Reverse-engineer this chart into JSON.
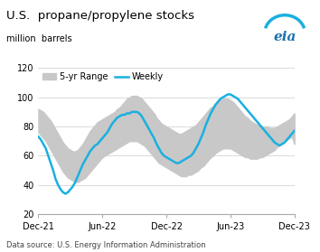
{
  "title": "U.S.  propane/propylene stocks",
  "ylabel": "million  barrels",
  "source": "Data source: U.S. Energy Information Administration",
  "xlabels": [
    "Dec-21",
    "Jun-22",
    "Dec-22",
    "Jun-23",
    "Dec-23"
  ],
  "xticks": [
    0,
    26,
    52,
    78,
    104
  ],
  "ylim": [
    20,
    120
  ],
  "yticks": [
    20,
    40,
    60,
    80,
    100,
    120
  ],
  "legend_range": "5-yr Range",
  "legend_weekly": "Weekly",
  "band_color": "#c8c8c8",
  "weekly_color": "#1ab0e0",
  "weekly_linewidth": 1.8,
  "n_points": 105,
  "weekly": [
    73,
    71,
    68,
    65,
    60,
    55,
    50,
    44,
    40,
    37,
    35,
    34,
    35,
    37,
    39,
    42,
    46,
    50,
    54,
    57,
    60,
    63,
    65,
    67,
    68,
    70,
    72,
    74,
    76,
    79,
    82,
    84,
    86,
    87,
    88,
    88,
    89,
    89,
    90,
    90,
    90,
    89,
    87,
    84,
    81,
    78,
    75,
    72,
    68,
    65,
    62,
    60,
    59,
    58,
    57,
    56,
    55,
    55,
    56,
    57,
    58,
    59,
    60,
    62,
    65,
    68,
    72,
    76,
    81,
    85,
    89,
    92,
    95,
    97,
    99,
    100,
    101,
    102,
    102,
    101,
    100,
    99,
    97,
    95,
    93,
    91,
    89,
    87,
    85,
    83,
    81,
    79,
    77,
    75,
    73,
    71,
    69,
    68,
    67,
    68,
    69,
    71,
    73,
    75,
    77
  ],
  "band_upper": [
    92,
    91,
    90,
    88,
    86,
    84,
    81,
    78,
    75,
    72,
    69,
    67,
    65,
    64,
    63,
    63,
    64,
    66,
    68,
    71,
    74,
    77,
    79,
    81,
    83,
    84,
    85,
    86,
    87,
    88,
    89,
    90,
    92,
    93,
    95,
    97,
    99,
    100,
    101,
    101,
    101,
    100,
    99,
    97,
    95,
    93,
    91,
    89,
    86,
    84,
    82,
    81,
    80,
    79,
    78,
    77,
    76,
    75,
    75,
    76,
    77,
    78,
    79,
    80,
    81,
    83,
    85,
    87,
    89,
    91,
    93,
    94,
    96,
    97,
    98,
    99,
    99,
    99,
    98,
    97,
    95,
    93,
    91,
    89,
    87,
    86,
    84,
    83,
    82,
    81,
    81,
    80,
    80,
    80,
    79,
    79,
    79,
    80,
    81,
    82,
    83,
    84,
    85,
    87,
    89
  ],
  "band_lower": [
    76,
    74,
    72,
    70,
    67,
    64,
    61,
    58,
    55,
    52,
    49,
    47,
    45,
    44,
    43,
    42,
    42,
    43,
    44,
    45,
    47,
    49,
    51,
    53,
    55,
    57,
    59,
    60,
    61,
    62,
    63,
    64,
    65,
    66,
    67,
    68,
    69,
    70,
    70,
    70,
    70,
    69,
    68,
    67,
    65,
    63,
    61,
    59,
    57,
    55,
    54,
    53,
    52,
    51,
    50,
    49,
    48,
    47,
    46,
    46,
    46,
    47,
    47,
    48,
    49,
    50,
    52,
    53,
    55,
    57,
    59,
    60,
    62,
    63,
    64,
    65,
    65,
    65,
    65,
    64,
    63,
    62,
    61,
    60,
    59,
    59,
    58,
    58,
    58,
    58,
    59,
    59,
    60,
    61,
    62,
    63,
    64,
    66,
    67,
    69,
    70,
    71,
    72,
    73,
    68
  ]
}
